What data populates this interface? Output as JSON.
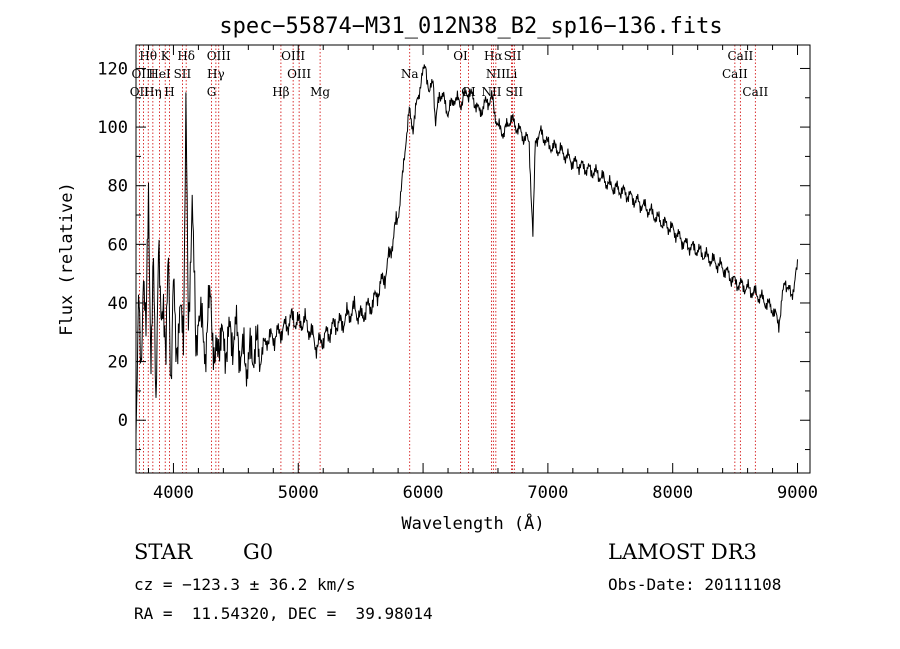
{
  "chart_data": {
    "type": "line",
    "title": "spec−55874−M31_012N38_B2_sp16−136.fits",
    "xlabel": "Wavelength (Å)",
    "ylabel": "Flux (relative)",
    "xlim": [
      3700,
      9100
    ],
    "ylim": [
      -18,
      128
    ],
    "x_ticks": [
      4000,
      5000,
      6000,
      7000,
      8000,
      9000
    ],
    "y_ticks": [
      0,
      20,
      40,
      60,
      80,
      100,
      120
    ],
    "grid": false,
    "series": [
      {
        "x": [
          3700,
          3720,
          3740,
          3760,
          3780,
          3800,
          3820,
          3840,
          3860,
          3880,
          3900,
          3920,
          3940,
          3960,
          3980,
          4000,
          4020,
          4050,
          4080,
          4100,
          4120,
          4150,
          4180,
          4200,
          4230,
          4260,
          4300,
          4330,
          4360,
          4400,
          4450,
          4500,
          4550,
          4600,
          4650,
          4700,
          4750,
          4800,
          4850,
          4900,
          4950,
          5000,
          5050,
          5100,
          5150,
          5200,
          5250,
          5300,
          5350,
          5400,
          5450,
          5500,
          5550,
          5600,
          5650,
          5700,
          5750,
          5800,
          5830,
          5860,
          5890,
          5920,
          5950,
          5980,
          6000,
          6020,
          6050,
          6080,
          6100,
          6130,
          6160,
          6200,
          6250,
          6300,
          6350,
          6400,
          6450,
          6500,
          6550,
          6600,
          6650,
          6700,
          6750,
          6800,
          6850,
          6880,
          6900,
          6950,
          7000,
          7100,
          7200,
          7300,
          7400,
          7500,
          7600,
          7700,
          7800,
          7900,
          8000,
          8100,
          8200,
          8300,
          8400,
          8500,
          8600,
          8700,
          8800,
          8850,
          8900,
          8950,
          9000
        ],
        "y": [
          -5,
          40,
          15,
          55,
          25,
          80,
          20,
          50,
          10,
          60,
          30,
          45,
          20,
          55,
          15,
          45,
          25,
          35,
          30,
          110,
          25,
          80,
          20,
          40,
          30,
          25,
          45,
          15,
          30,
          25,
          28,
          30,
          22,
          20,
          25,
          22,
          28,
          28,
          30,
          32,
          35,
          33,
          34,
          30,
          25,
          28,
          30,
          33,
          33,
          36,
          38,
          35,
          38,
          40,
          45,
          50,
          60,
          70,
          80,
          95,
          105,
          100,
          108,
          115,
          118,
          122,
          110,
          118,
          100,
          112,
          110,
          105,
          110,
          108,
          112,
          110,
          105,
          108,
          110,
          100,
          98,
          103,
          100,
          97,
          95,
          62,
          96,
          98,
          94,
          92,
          88,
          86,
          84,
          80,
          78,
          75,
          72,
          68,
          65,
          60,
          58,
          55,
          52,
          47,
          45,
          42,
          38,
          33,
          48,
          42,
          52
        ]
      }
    ],
    "line_markers": [
      {
        "label": "Hθ",
        "wavelength": 3798,
        "row": 0
      },
      {
        "label": "K",
        "wavelength": 3934,
        "row": 0
      },
      {
        "label": "Hδ",
        "wavelength": 4102,
        "row": 0
      },
      {
        "label": "OIII",
        "wavelength": 4363,
        "row": 0
      },
      {
        "label": "OIII",
        "wavelength": 4959,
        "row": 0
      },
      {
        "label": "OI",
        "wavelength": 6300,
        "row": 0
      },
      {
        "label": "Hα",
        "wavelength": 6563,
        "row": 0
      },
      {
        "label": "SII",
        "wavelength": 6717,
        "row": 0
      },
      {
        "label": "CaII",
        "wavelength": 8542,
        "row": 0
      },
      {
        "label": "OIII",
        "wavelength": 3760,
        "row": 1
      },
      {
        "label": "HeI",
        "wavelength": 3889,
        "row": 1
      },
      {
        "label": "SII",
        "wavelength": 4072,
        "row": 1
      },
      {
        "label": "Hγ",
        "wavelength": 4340,
        "row": 1
      },
      {
        "label": "OIII",
        "wavelength": 5007,
        "row": 1
      },
      {
        "label": "Na",
        "wavelength": 5893,
        "row": 1
      },
      {
        "label": "NII",
        "wavelength": 6583,
        "row": 1
      },
      {
        "label": "Li",
        "wavelength": 6708,
        "row": 1
      },
      {
        "label": "CaII",
        "wavelength": 8498,
        "row": 1
      },
      {
        "label": "OII",
        "wavelength": 3727,
        "row": 2
      },
      {
        "label": "Hη",
        "wavelength": 3835,
        "row": 2
      },
      {
        "label": "H",
        "wavelength": 3968,
        "row": 2
      },
      {
        "label": "G",
        "wavelength": 4305,
        "row": 2
      },
      {
        "label": "Hβ",
        "wavelength": 4861,
        "row": 2
      },
      {
        "label": "Mg",
        "wavelength": 5175,
        "row": 2
      },
      {
        "label": "OI",
        "wavelength": 6364,
        "row": 2
      },
      {
        "label": "NII",
        "wavelength": 6548,
        "row": 2
      },
      {
        "label": "SII",
        "wavelength": 6731,
        "row": 2
      },
      {
        "label": "CaII",
        "wavelength": 8662,
        "row": 2
      }
    ]
  },
  "footer": {
    "class_label": "STAR",
    "subclass": "G0",
    "survey": "LAMOST DR3",
    "cz": "cz = −123.3 ± 36.2 km/s",
    "obs_date": "Obs-Date: 20111108",
    "coords": "RA =  11.54320, DEC =  39.98014"
  }
}
